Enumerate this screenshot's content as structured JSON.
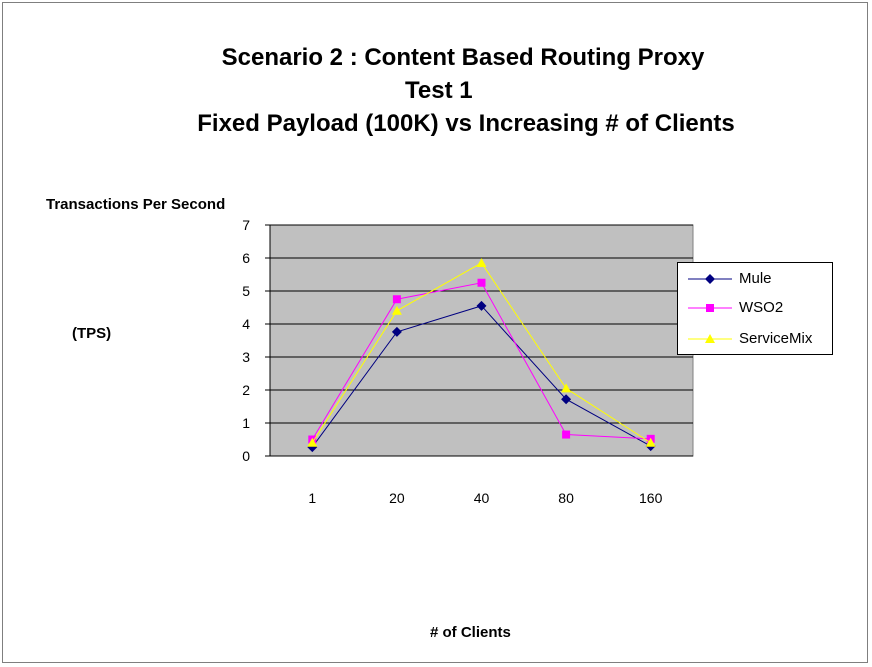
{
  "chart_data": {
    "type": "line",
    "title_lines": [
      "Scenario 2 : Content Based Routing Proxy",
      "Test 1",
      "Fixed Payload (100K) vs Increasing # of Clients"
    ],
    "ylabel_line1": "Transactions Per Second",
    "ylabel_line2": "(TPS)",
    "xlabel": "# of Clients",
    "categories": [
      "1",
      "20",
      "40",
      "80",
      "160"
    ],
    "ylim": [
      0,
      7
    ],
    "yticks": [
      0,
      1,
      2,
      3,
      4,
      5,
      6,
      7
    ],
    "grid": true,
    "legend_position": "right",
    "plot_background": "#c0c0c0",
    "series": [
      {
        "name": "Mule",
        "values": [
          0.27,
          3.76,
          4.55,
          1.72,
          0.3
        ],
        "color": "#000080",
        "marker": "diamond"
      },
      {
        "name": "WSO2",
        "values": [
          0.5,
          4.75,
          5.25,
          0.65,
          0.52
        ],
        "color": "#ff00ff",
        "marker": "square"
      },
      {
        "name": "ServiceMix",
        "values": [
          0.4,
          4.4,
          5.85,
          2.05,
          0.4
        ],
        "color": "#ffff00",
        "marker": "triangle"
      }
    ]
  }
}
